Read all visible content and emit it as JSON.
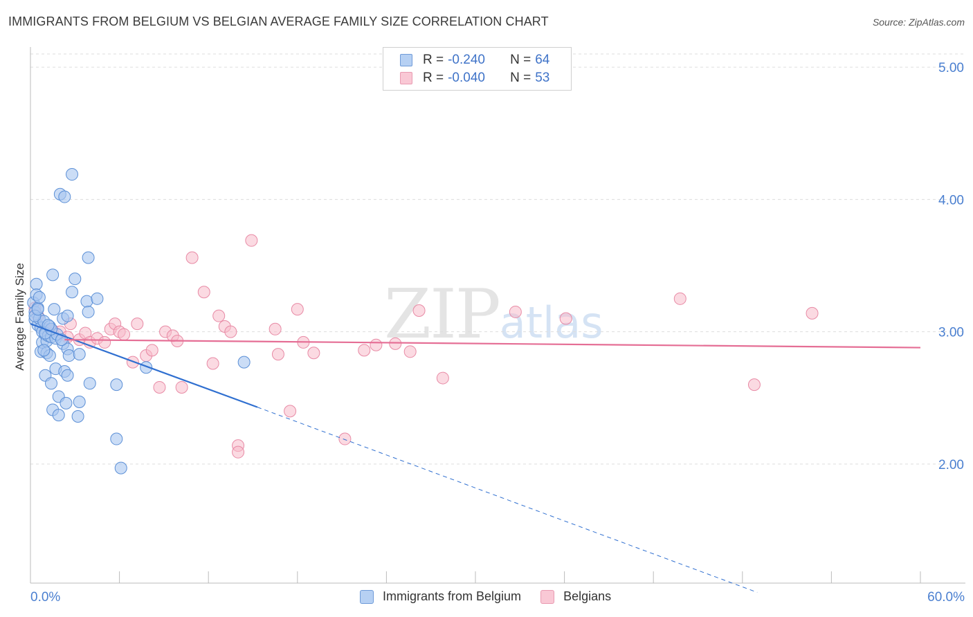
{
  "title": "IMMIGRANTS FROM BELGIUM VS BELGIAN AVERAGE FAMILY SIZE CORRELATION CHART",
  "source": "Source: ZipAtlas.com",
  "watermark": {
    "zip": "ZIP",
    "atlas": "atlas"
  },
  "legend": [
    {
      "r_label": "R = ",
      "r_value": "-0.240",
      "n_label": "N = ",
      "n_value": "64"
    },
    {
      "r_label": "R = ",
      "r_value": "-0.040",
      "n_label": "N = ",
      "n_value": "53"
    }
  ],
  "bottom_legend": [
    "Immigrants from Belgium",
    "Belgians"
  ],
  "colors": {
    "blue_fill": "#a9c7f0",
    "blue_stroke": "#5b8fd6",
    "blue_line": "#2f6fd0",
    "pink_fill": "#f7bccb",
    "pink_stroke": "#e88aa5",
    "pink_line": "#e56e95",
    "grid": "#dddddd",
    "axis_label": "#4a7fd0"
  },
  "chart_data": {
    "type": "scatter",
    "title": "IMMIGRANTS FROM BELGIUM VS BELGIAN AVERAGE FAMILY SIZE CORRELATION CHART",
    "xlabel": "",
    "ylabel": "Average Family Size",
    "xlim": [
      0,
      60
    ],
    "ylim": [
      1.1,
      5.1
    ],
    "x_tick_labels": [
      "0.0%",
      "60.0%"
    ],
    "y_ticks": [
      2.0,
      3.0,
      4.0,
      5.0
    ],
    "y_tick_labels": [
      "2.00",
      "3.00",
      "4.00",
      "5.00"
    ],
    "series": [
      {
        "name": "Immigrants from Belgium",
        "r": -0.24,
        "n": 64,
        "trend": {
          "x0": 0.0,
          "y0": 3.06,
          "x1": 15.3,
          "y1": 2.43,
          "dashed_to_x": 49.0,
          "dashed_to_y": 1.03
        },
        "points": [
          [
            0.2,
            3.22
          ],
          [
            0.3,
            3.15
          ],
          [
            0.3,
            3.09
          ],
          [
            0.4,
            3.36
          ],
          [
            0.4,
            3.28
          ],
          [
            0.5,
            3.18
          ],
          [
            0.5,
            3.05
          ],
          [
            0.6,
            3.1
          ],
          [
            0.7,
            3.03
          ],
          [
            0.7,
            2.85
          ],
          [
            0.8,
            3.0
          ],
          [
            0.8,
            2.92
          ],
          [
            0.9,
            3.08
          ],
          [
            1.0,
            2.98
          ],
          [
            1.0,
            2.67
          ],
          [
            1.1,
            2.93
          ],
          [
            1.1,
            2.84
          ],
          [
            1.2,
            2.97
          ],
          [
            1.3,
            3.04
          ],
          [
            1.3,
            2.82
          ],
          [
            1.4,
            2.61
          ],
          [
            1.4,
            2.96
          ],
          [
            1.5,
            2.41
          ],
          [
            1.5,
            3.43
          ],
          [
            1.6,
            3.17
          ],
          [
            1.7,
            2.95
          ],
          [
            1.7,
            2.72
          ],
          [
            1.8,
            2.98
          ],
          [
            1.9,
            2.51
          ],
          [
            1.9,
            2.37
          ],
          [
            2.0,
            4.04
          ],
          [
            2.2,
            2.91
          ],
          [
            2.2,
            3.1
          ],
          [
            2.3,
            2.7
          ],
          [
            2.4,
            2.46
          ],
          [
            2.3,
            4.02
          ],
          [
            2.5,
            2.87
          ],
          [
            2.5,
            3.12
          ],
          [
            2.5,
            2.67
          ],
          [
            2.6,
            2.82
          ],
          [
            2.8,
            3.3
          ],
          [
            2.8,
            4.19
          ],
          [
            3.0,
            3.4
          ],
          [
            3.2,
            2.36
          ],
          [
            3.3,
            2.83
          ],
          [
            3.3,
            2.47
          ],
          [
            3.8,
            3.23
          ],
          [
            3.9,
            3.56
          ],
          [
            3.9,
            3.15
          ],
          [
            4.0,
            2.61
          ],
          [
            4.5,
            3.25
          ],
          [
            5.8,
            2.6
          ],
          [
            5.8,
            2.19
          ],
          [
            6.1,
            1.97
          ],
          [
            7.8,
            2.73
          ],
          [
            14.4,
            2.77
          ],
          [
            0.6,
            3.26
          ],
          [
            1.0,
            2.99
          ],
          [
            1.4,
            3.02
          ],
          [
            0.3,
            3.12
          ],
          [
            0.9,
            2.86
          ],
          [
            2.1,
            2.94
          ],
          [
            0.5,
            3.17
          ],
          [
            1.2,
            3.05
          ]
        ]
      },
      {
        "name": "Belgians",
        "r": -0.04,
        "n": 53,
        "trend": {
          "x0": 2.3,
          "y0": 2.94,
          "x1": 60.0,
          "y1": 2.88
        },
        "points": [
          [
            0.3,
            3.18
          ],
          [
            0.5,
            3.12
          ],
          [
            1.0,
            3.02
          ],
          [
            1.3,
            2.99
          ],
          [
            1.5,
            3.01
          ],
          [
            2.0,
            3.0
          ],
          [
            2.5,
            2.96
          ],
          [
            2.7,
            3.06
          ],
          [
            3.3,
            2.94
          ],
          [
            3.7,
            2.99
          ],
          [
            4.0,
            2.92
          ],
          [
            4.5,
            2.95
          ],
          [
            5.0,
            2.92
          ],
          [
            5.4,
            3.02
          ],
          [
            5.7,
            3.06
          ],
          [
            6.0,
            3.0
          ],
          [
            6.3,
            2.98
          ],
          [
            6.9,
            2.77
          ],
          [
            7.2,
            3.06
          ],
          [
            7.8,
            2.82
          ],
          [
            8.2,
            2.86
          ],
          [
            8.7,
            2.58
          ],
          [
            9.1,
            3.0
          ],
          [
            9.6,
            2.97
          ],
          [
            9.9,
            2.93
          ],
          [
            10.2,
            2.58
          ],
          [
            10.9,
            3.56
          ],
          [
            11.7,
            3.3
          ],
          [
            12.3,
            2.76
          ],
          [
            12.7,
            3.12
          ],
          [
            13.1,
            3.04
          ],
          [
            13.5,
            3.0
          ],
          [
            14.0,
            2.14
          ],
          [
            14.0,
            2.09
          ],
          [
            14.9,
            3.69
          ],
          [
            16.5,
            3.02
          ],
          [
            16.7,
            2.83
          ],
          [
            17.5,
            2.4
          ],
          [
            18.0,
            3.17
          ],
          [
            18.4,
            2.92
          ],
          [
            19.1,
            2.84
          ],
          [
            21.2,
            2.19
          ],
          [
            22.5,
            2.86
          ],
          [
            23.3,
            2.9
          ],
          [
            24.6,
            2.91
          ],
          [
            25.6,
            2.85
          ],
          [
            26.2,
            3.16
          ],
          [
            27.8,
            2.65
          ],
          [
            32.7,
            3.15
          ],
          [
            36.1,
            3.1
          ],
          [
            43.8,
            3.25
          ],
          [
            48.8,
            2.6
          ],
          [
            52.7,
            3.14
          ]
        ]
      }
    ]
  }
}
